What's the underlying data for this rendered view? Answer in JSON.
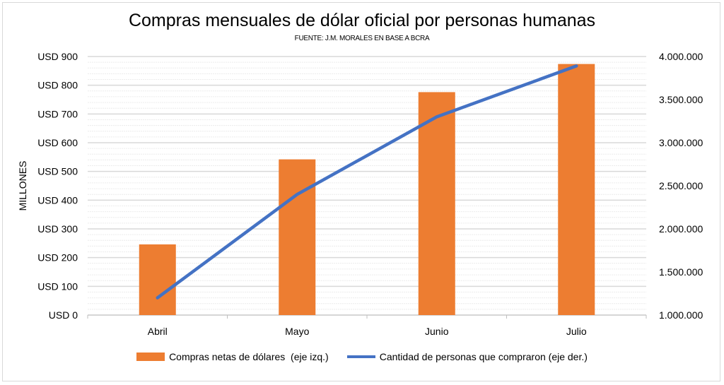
{
  "chart_data": {
    "type": "bar+line",
    "title": "Compras mensuales de dólar oficial por personas humanas",
    "subtitle": "FUENTE: J.M. MORALES EN BASE A BCRA",
    "ylabel": "MILLONES",
    "categories": [
      "Abril",
      "Mayo",
      "Junio",
      "Julio"
    ],
    "series": [
      {
        "name": "Compras netas de dólares  (eje izq.)",
        "type": "bar",
        "axis": "left",
        "color": "#ed7d31",
        "values": [
          246,
          542,
          776,
          874
        ]
      },
      {
        "name": "Cantidad de personas que compraron (eje der.)",
        "type": "line",
        "axis": "right",
        "color": "#4472c4",
        "values": [
          1200000,
          2400000,
          3300000,
          3890000
        ]
      }
    ],
    "ylim_left": [
      0,
      900
    ],
    "ylim_right": [
      1000000,
      4000000
    ],
    "left_ticks": [
      "USD 0",
      "USD 100",
      "USD 200",
      "USD 300",
      "USD 400",
      "USD 500",
      "USD 600",
      "USD 700",
      "USD 800",
      "USD 900"
    ],
    "right_ticks": [
      "1.000.000",
      "1.500.000",
      "2.000.000",
      "2.500.000",
      "3.000.000",
      "3.500.000",
      "4.000.000"
    ],
    "grid": true,
    "legend_position": "bottom"
  }
}
